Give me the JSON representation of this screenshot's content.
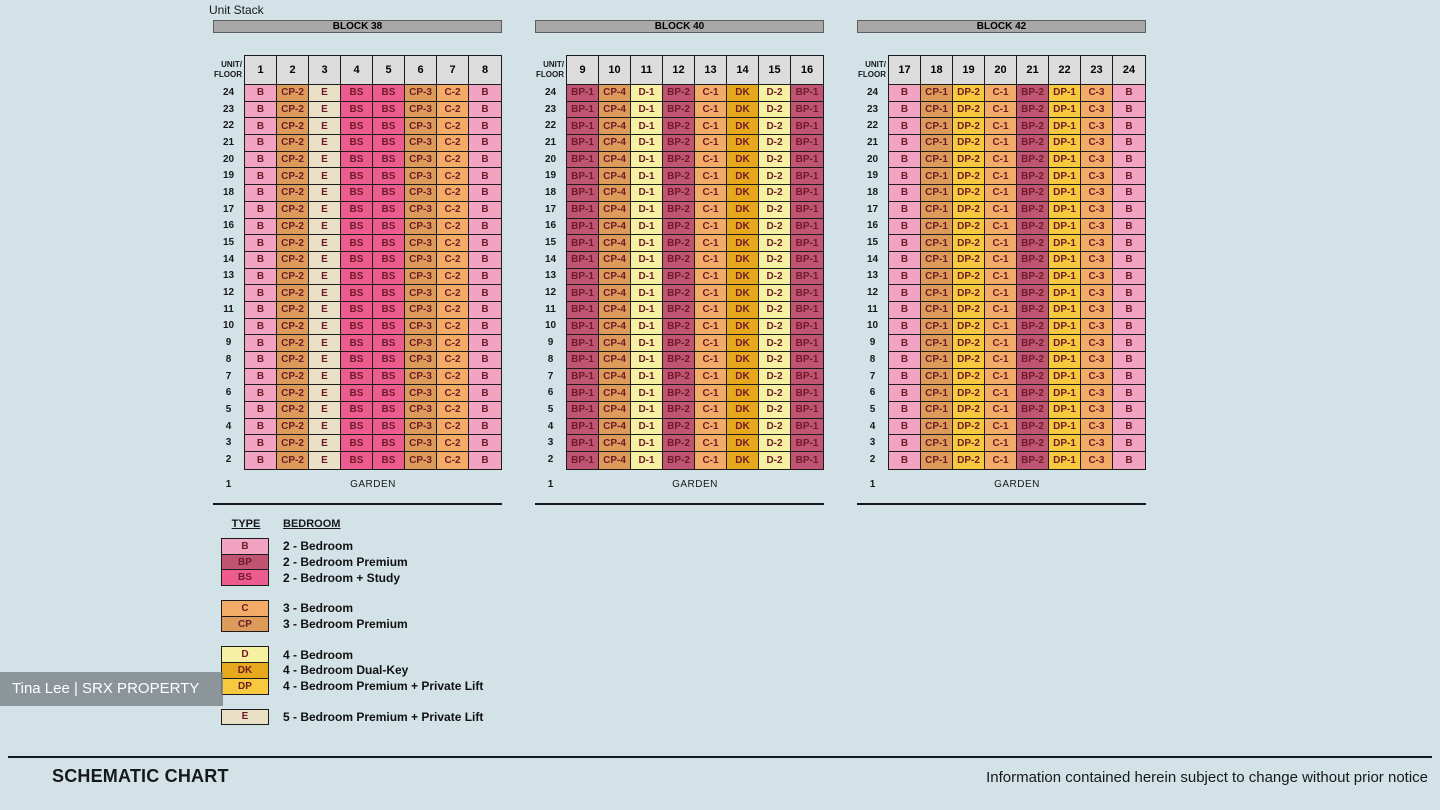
{
  "page_title": "Unit Stack",
  "colors": {
    "background": "#d3e2e6",
    "block_bar_bg": "#a8a8a8",
    "header_cell_bg": "#dcdcdc",
    "cell_text": "#6e1a28",
    "types": {
      "B": "#f2a3c1",
      "BP": "#c05573",
      "BS": "#ec5c8e",
      "C": "#f3ab68",
      "CP": "#dc9a5b",
      "D": "#f5f0a2",
      "DK": "#e8a81e",
      "DP": "#f6c93e",
      "E": "#e9e0c6"
    }
  },
  "floor_axis": {
    "header_line1": "UNIT/",
    "header_line2": "FLOOR",
    "floors": [
      24,
      23,
      22,
      21,
      20,
      19,
      18,
      17,
      16,
      15,
      14,
      13,
      12,
      11,
      10,
      9,
      8,
      7,
      6,
      5,
      4,
      3,
      2
    ],
    "ground_floor": "1",
    "ground_label": "GARDEN"
  },
  "blocks": [
    {
      "title": "BLOCK 38",
      "units": [
        "1",
        "2",
        "3",
        "4",
        "5",
        "6",
        "7",
        "8"
      ],
      "stack": [
        "B",
        "CP-2",
        "E",
        "BS",
        "BS",
        "CP-3",
        "C-2",
        "B"
      ]
    },
    {
      "title": "BLOCK 40",
      "units": [
        "9",
        "10",
        "11",
        "12",
        "13",
        "14",
        "15",
        "16"
      ],
      "stack": [
        "BP-1",
        "CP-4",
        "D-1",
        "BP-2",
        "C-1",
        "DK",
        "D-2",
        "BP-1"
      ]
    },
    {
      "title": "BLOCK 42",
      "units": [
        "17",
        "18",
        "19",
        "20",
        "21",
        "22",
        "23",
        "24"
      ],
      "stack": [
        "B",
        "CP-1",
        "DP-2",
        "C-1",
        "BP-2",
        "DP-1",
        "C-3",
        "B"
      ]
    }
  ],
  "legend": {
    "type_header": "TYPE",
    "bedroom_header": "BEDROOM",
    "groups": [
      [
        {
          "code": "B",
          "label": "2 - Bedroom"
        },
        {
          "code": "BP",
          "label": "2 - Bedroom Premium"
        },
        {
          "code": "BS",
          "label": "2 - Bedroom + Study"
        }
      ],
      [
        {
          "code": "C",
          "label": "3 - Bedroom"
        },
        {
          "code": "CP",
          "label": "3 - Bedroom Premium"
        }
      ],
      [
        {
          "code": "D",
          "label": "4 - Bedroom"
        },
        {
          "code": "DK",
          "label": "4 - Bedroom Dual-Key"
        },
        {
          "code": "DP",
          "label": "4 - Bedroom Premium + Private Lift"
        }
      ],
      [
        {
          "code": "E",
          "label": "5 - Bedroom Premium + Private Lift"
        }
      ]
    ]
  },
  "watermark": "Tina Lee | SRX PROPERTY",
  "footer": {
    "title": "SCHEMATIC CHART",
    "disclaimer": "Information contained herein subject to change without prior notice"
  }
}
